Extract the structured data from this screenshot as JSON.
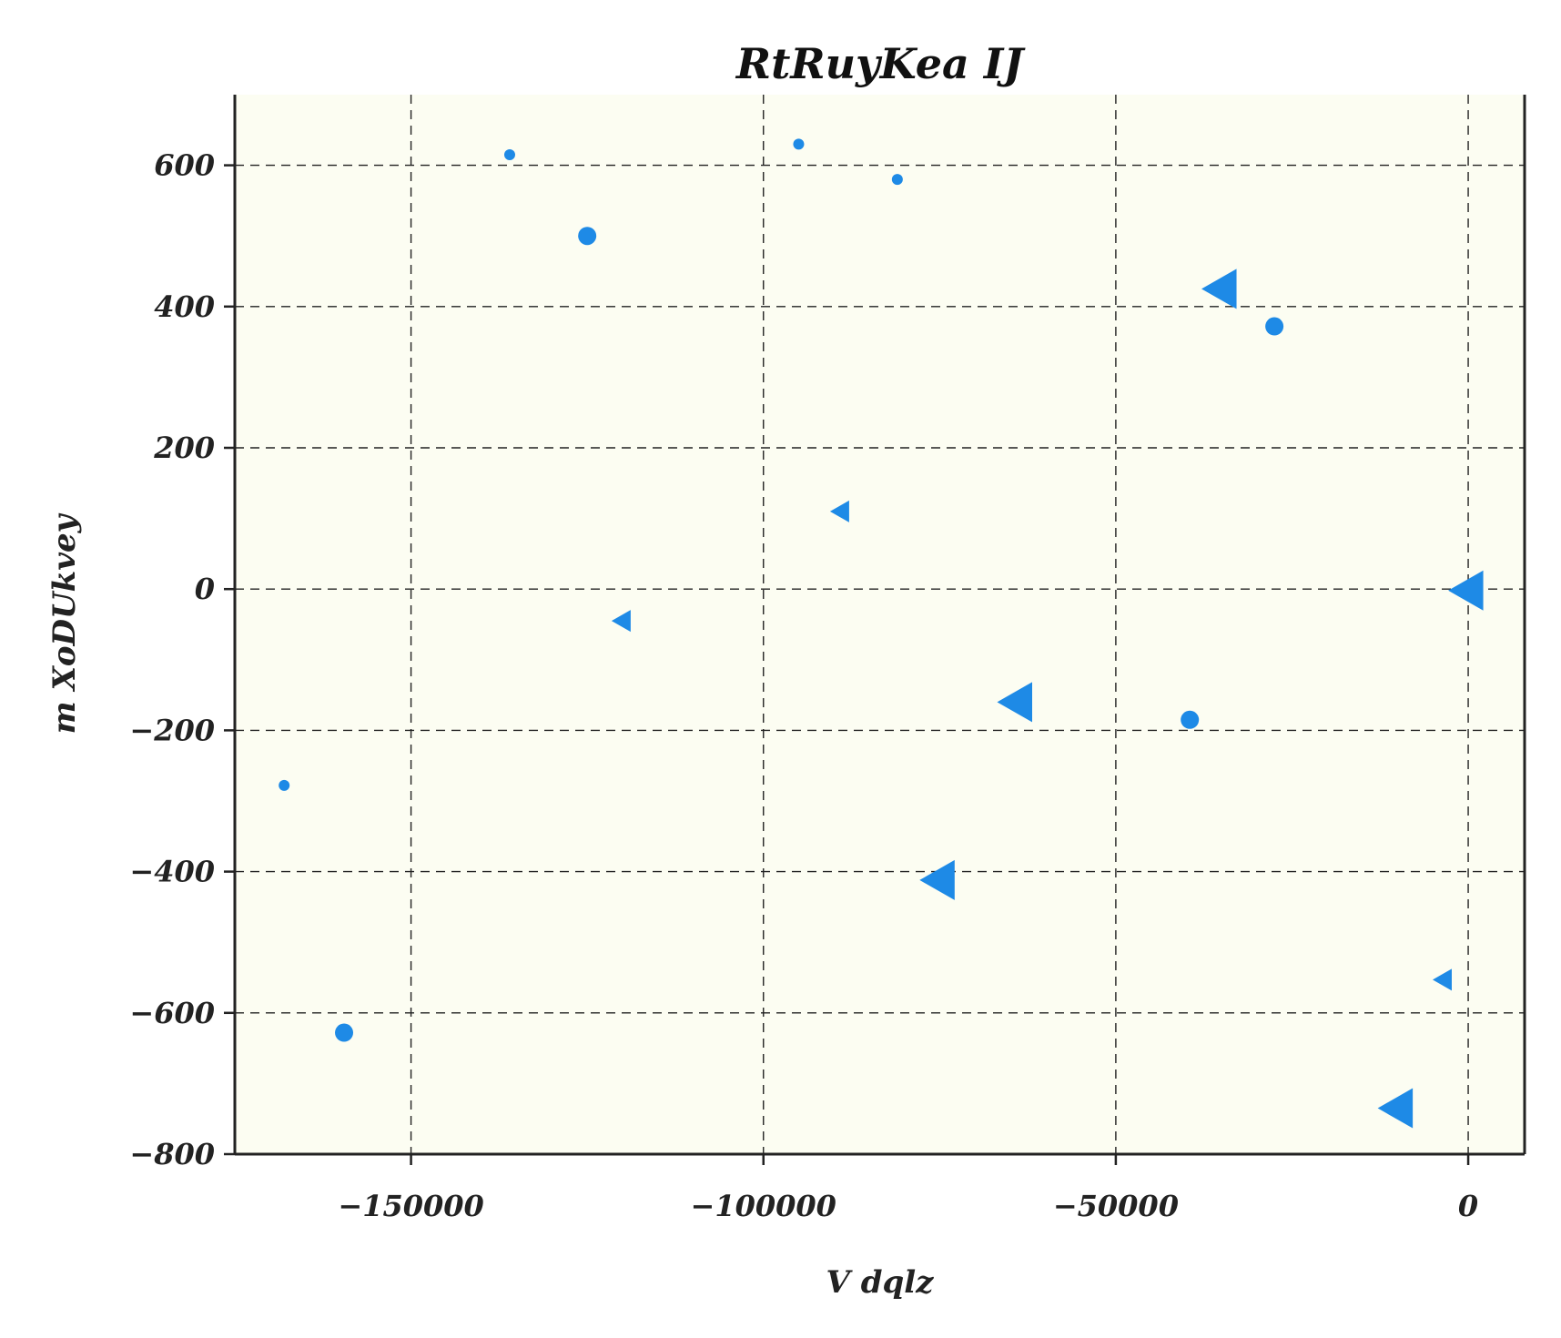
{
  "chart_data": {
    "type": "scatter",
    "title": "RtRuyKea IJ",
    "xlabel": "V dqlz",
    "ylabel": "m XoDUkvey",
    "xlim": [
      -175000,
      8000
    ],
    "ylim": [
      -800,
      700
    ],
    "xticks": [
      -150000,
      -100000,
      -50000,
      0
    ],
    "yticks": [
      -800,
      -600,
      -400,
      -200,
      0,
      200,
      400,
      600
    ],
    "xtick_labels": [
      "−150000",
      "−100000",
      "−50000",
      "0"
    ],
    "ytick_labels": [
      "−800",
      "−600",
      "−400",
      "−200",
      "0",
      "200",
      "400",
      "600"
    ],
    "grid": true,
    "marker_color": "#1e8ae6",
    "plot_background": "#fcfdf2",
    "points": [
      {
        "x": -136000,
        "y": 615,
        "marker": "circle",
        "size": 1
      },
      {
        "x": -95000,
        "y": 630,
        "marker": "circle",
        "size": 1
      },
      {
        "x": -81000,
        "y": 580,
        "marker": "circle",
        "size": 1
      },
      {
        "x": -125000,
        "y": 500,
        "marker": "circle",
        "size": 2
      },
      {
        "x": -35000,
        "y": 425,
        "marker": "triangle-left",
        "size": 3
      },
      {
        "x": -27500,
        "y": 372,
        "marker": "circle",
        "size": 2
      },
      {
        "x": -89000,
        "y": 110,
        "marker": "triangle-left",
        "size": 1
      },
      {
        "x": -120000,
        "y": -45,
        "marker": "triangle-left",
        "size": 1
      },
      {
        "x": 0,
        "y": -2,
        "marker": "triangle-left",
        "size": 3
      },
      {
        "x": -64000,
        "y": -160,
        "marker": "triangle-left",
        "size": 3
      },
      {
        "x": -39500,
        "y": -185,
        "marker": "circle",
        "size": 2
      },
      {
        "x": -168000,
        "y": -278,
        "marker": "circle",
        "size": 1
      },
      {
        "x": -75000,
        "y": -412,
        "marker": "triangle-left",
        "size": 3
      },
      {
        "x": -3500,
        "y": -553,
        "marker": "triangle-left",
        "size": 1
      },
      {
        "x": -159500,
        "y": -628,
        "marker": "circle",
        "size": 2
      },
      {
        "x": -10000,
        "y": -735,
        "marker": "triangle-left",
        "size": 3
      }
    ]
  }
}
